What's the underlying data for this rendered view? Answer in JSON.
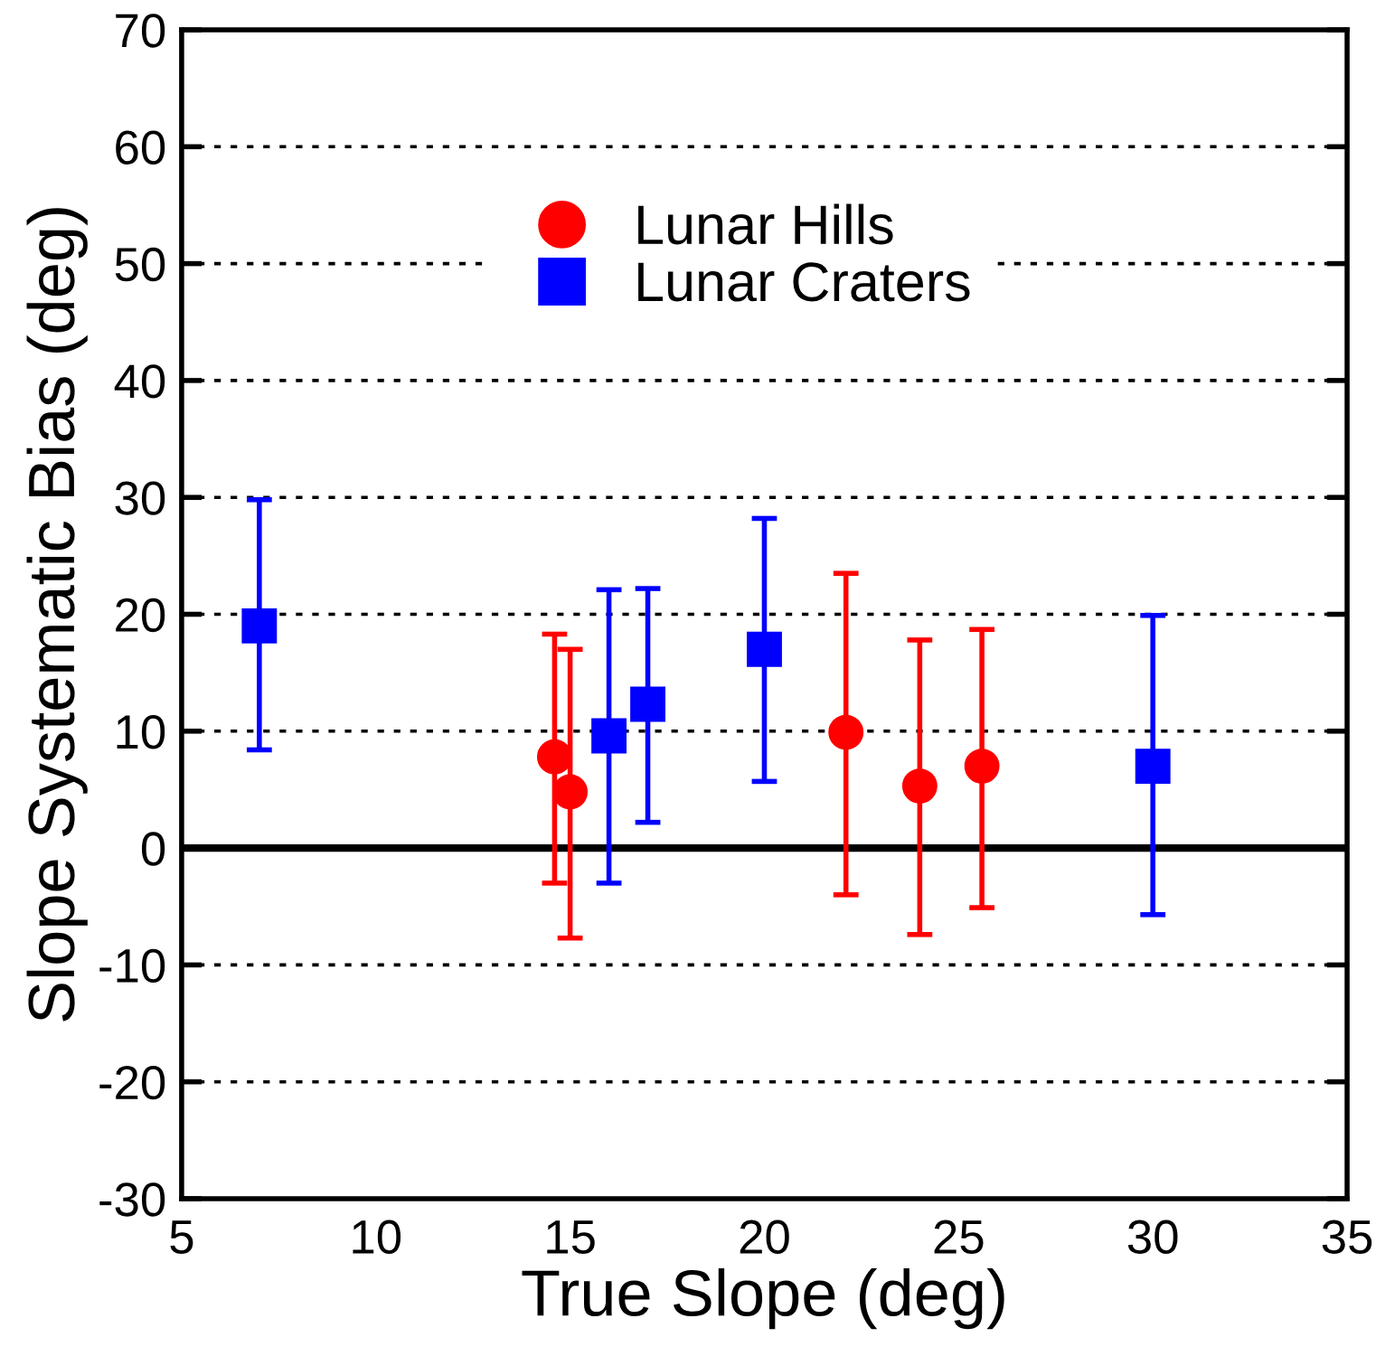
{
  "chart_data": {
    "type": "scatter",
    "xlabel": "True Slope (deg)",
    "ylabel": "Slope Systematic Bias (deg)",
    "xlim": [
      5,
      35
    ],
    "xticks": [
      5,
      10,
      15,
      20,
      25,
      30,
      35
    ],
    "ylim": [
      -30,
      70
    ],
    "yticks": [
      -30,
      -20,
      -10,
      0,
      10,
      20,
      30,
      40,
      50,
      60,
      70
    ],
    "grid": "y",
    "legend": "top",
    "ref_lines": [
      {
        "axis": "y",
        "value": 0,
        "color": "#000000",
        "line_style": "solid"
      }
    ],
    "series": [
      {
        "name": "Lunar Hills",
        "color": "#ff0000",
        "marker": "circle",
        "x": [
          14.6,
          15.0,
          22.1,
          24.0,
          25.6
        ],
        "values": [
          7.8,
          4.8,
          9.9,
          5.3,
          7.0
        ],
        "errors": [
          [
            -3.0,
            18.3
          ],
          [
            -7.7,
            17.0
          ],
          [
            -4.0,
            23.5
          ],
          [
            -7.4,
            17.8
          ],
          [
            -5.1,
            18.7
          ]
        ]
      },
      {
        "name": "Lunar Craters",
        "color": "#0000ff",
        "marker": "square",
        "x": [
          7.0,
          16.0,
          17.0,
          20.0,
          30.0
        ],
        "values": [
          19.0,
          9.6,
          12.3,
          17.0,
          7.0
        ],
        "errors": [
          [
            8.4,
            29.8
          ],
          [
            -3.0,
            22.1
          ],
          [
            2.2,
            22.2
          ],
          [
            5.7,
            28.2
          ],
          [
            -5.7,
            19.9
          ]
        ]
      }
    ]
  }
}
